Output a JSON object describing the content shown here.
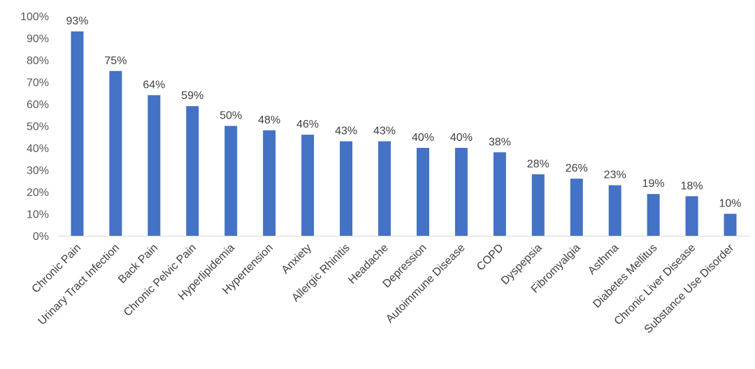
{
  "chart_data": {
    "type": "bar",
    "title": "",
    "xlabel": "",
    "ylabel": "",
    "ylim": [
      0,
      100
    ],
    "y_ticks": [
      "0%",
      "10%",
      "20%",
      "30%",
      "40%",
      "50%",
      "60%",
      "70%",
      "80%",
      "90%",
      "100%"
    ],
    "grid": false,
    "legend": "none",
    "bar_color": "#4472C4",
    "categories": [
      "Chronic Pain",
      "Urinary Tract Infection",
      "Back Pain",
      "Chronic Pelvic Pain",
      "Hyperlipidemia",
      "Hypertension",
      "Anxiety",
      "Allergic Rhinitis",
      "Headache",
      "Depression",
      "Autoimmune Disease",
      "COPD",
      "Dyspepsia",
      "Fibromyalgia",
      "Asthma",
      "Diabetes Mellitus",
      "Chronic Liver Disease",
      "Substance Use Disorder"
    ],
    "values": [
      93,
      75,
      64,
      59,
      50,
      48,
      46,
      43,
      43,
      40,
      40,
      38,
      28,
      26,
      23,
      19,
      18,
      10
    ],
    "data_labels": [
      "93%",
      "75%",
      "64%",
      "59%",
      "50%",
      "48%",
      "46%",
      "43%",
      "43%",
      "40%",
      "40%",
      "38%",
      "28%",
      "26%",
      "23%",
      "19%",
      "18%",
      "10%"
    ]
  }
}
